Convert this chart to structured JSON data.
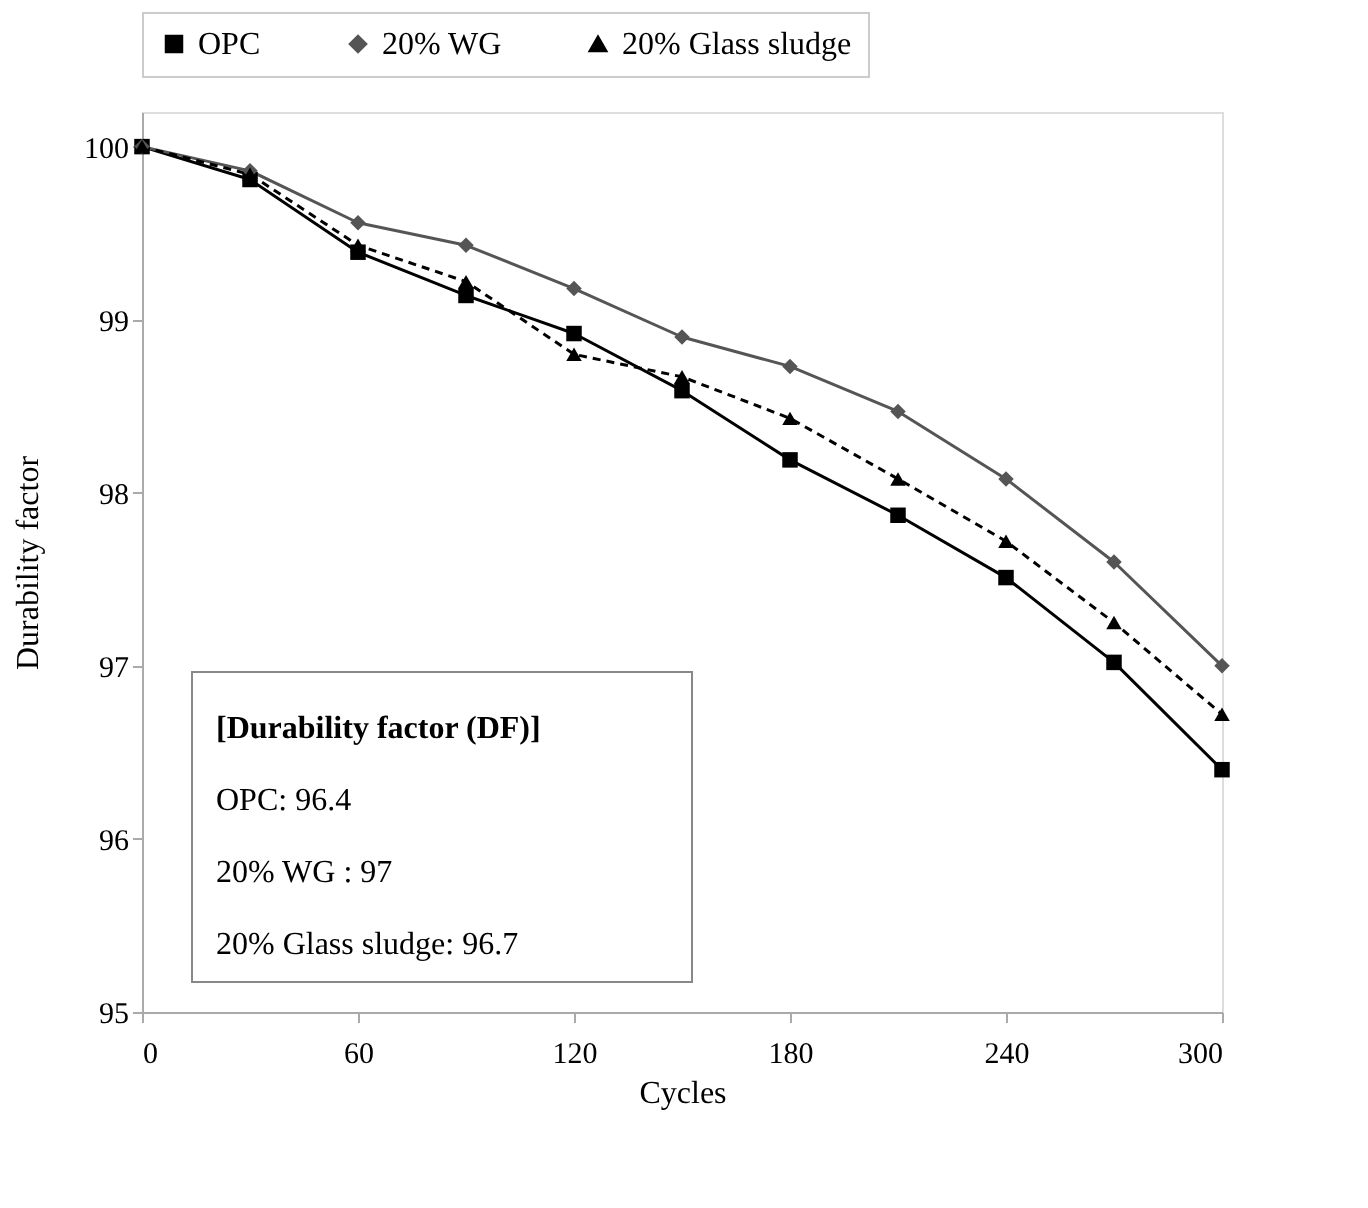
{
  "chart_data": {
    "type": "line",
    "xlabel": "Cycles",
    "ylabel": "Durability factor",
    "x": [
      0,
      30,
      60,
      90,
      120,
      150,
      180,
      210,
      240,
      270,
      300
    ],
    "xlim": [
      0,
      300
    ],
    "xticks": [
      0,
      60,
      120,
      180,
      240,
      300
    ],
    "ylim": [
      95,
      100.2
    ],
    "yticks": [
      95,
      96,
      97,
      98,
      99,
      100
    ],
    "grid": false,
    "legend": "top",
    "series": [
      {
        "name": "OPC",
        "color": "#000000",
        "marker": "square",
        "line_style": "solid",
        "values": [
          100,
          99.81,
          99.39,
          99.14,
          98.92,
          98.59,
          98.19,
          97.87,
          97.51,
          97.02,
          96.4
        ]
      },
      {
        "name": "20% WG",
        "color": "#555555",
        "marker": "diamond",
        "line_style": "solid",
        "values": [
          100,
          99.86,
          99.56,
          99.43,
          99.18,
          98.9,
          98.73,
          98.47,
          98.08,
          97.6,
          97.0
        ]
      },
      {
        "name": "20% Glass sludge",
        "color": "#000000",
        "marker": "triangle",
        "line_style": "dashed",
        "values": [
          100,
          99.84,
          99.43,
          99.22,
          98.8,
          98.67,
          98.43,
          98.08,
          97.72,
          97.25,
          96.72
        ]
      }
    ],
    "annotations": [
      "[Durability factor (DF)]",
      "OPC: 96.4",
      "20% WG : 97",
      "20% Glass sludge: 96.7"
    ]
  }
}
